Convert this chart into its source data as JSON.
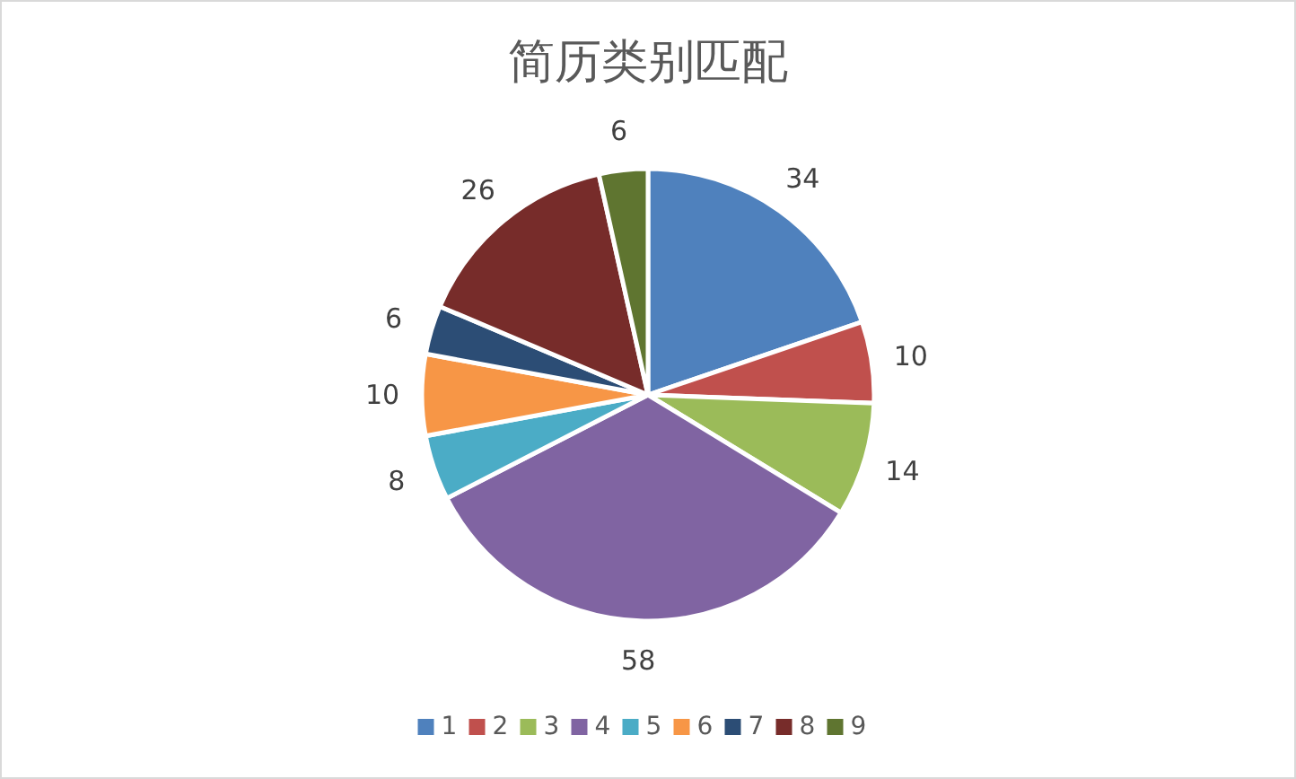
{
  "chart_data": {
    "type": "pie",
    "title": "简历类别匹配",
    "categories": [
      "1",
      "2",
      "3",
      "4",
      "5",
      "6",
      "7",
      "8",
      "9"
    ],
    "values": [
      34,
      10,
      14,
      58,
      8,
      10,
      6,
      26,
      6
    ],
    "colors": [
      "#4f81bd",
      "#c0504d",
      "#9bbb59",
      "#8064a2",
      "#4bacc6",
      "#f79646",
      "#2c4d75",
      "#772c2a",
      "#5f7530"
    ],
    "data_labels": true,
    "legend": "bottom"
  }
}
